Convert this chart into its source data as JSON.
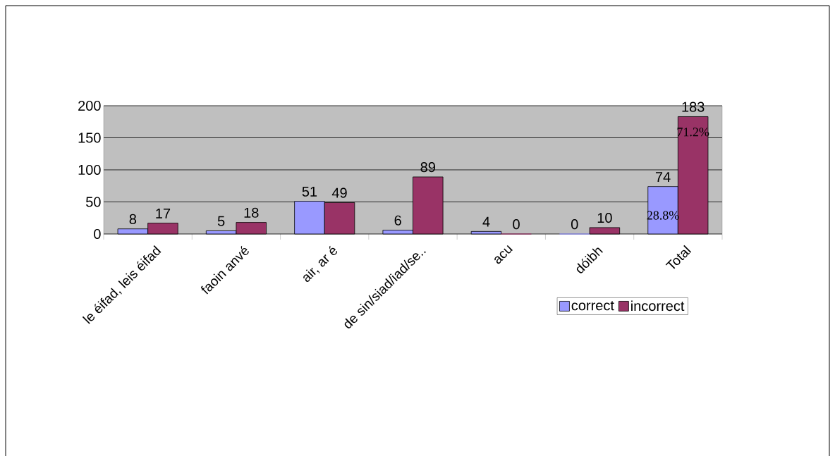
{
  "chart_data": {
    "type": "bar",
    "categories": [
      "le éifad, leis éifad",
      "faoin anvé",
      "air, ar é",
      "de sin/siad/iad/se..",
      "acu",
      "dóibh",
      "Total"
    ],
    "series": [
      {
        "name": "correct",
        "color": "#9999ff",
        "values": [
          8,
          5,
          51,
          6,
          4,
          0,
          74
        ]
      },
      {
        "name": "incorrect",
        "color": "#993366",
        "values": [
          17,
          18,
          49,
          89,
          0,
          10,
          183
        ]
      }
    ],
    "ylim": [
      0,
      200
    ],
    "yticks": [
      0,
      50,
      100,
      150,
      200
    ],
    "grid": "y",
    "legend": "bottom",
    "data_labels": true,
    "annotations": [
      {
        "text": "28.8%",
        "x": "Total",
        "y": 29
      },
      {
        "text": "71.2%",
        "x": "Total",
        "y": 159
      }
    ]
  }
}
